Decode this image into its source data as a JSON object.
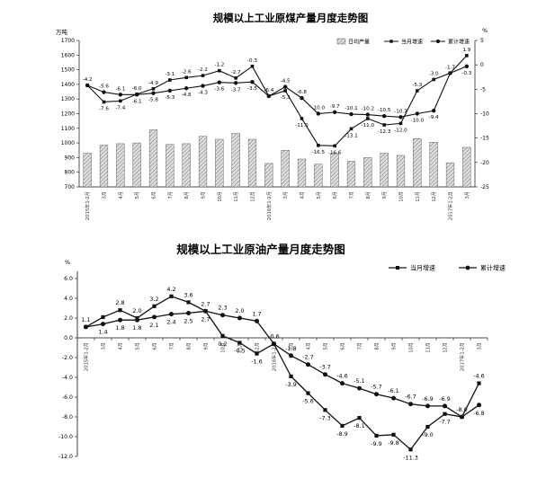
{
  "colors": {
    "ink": "#111111",
    "bar_fill": "#c8c8c8",
    "bar_stroke": "#444444",
    "grid": "#bdbdbd"
  },
  "chart_data": [
    {
      "type": "bar",
      "title": "规模以上工业原煤产量月度走势图",
      "ylabel_left": "万吨",
      "ylabel_right": "%",
      "ylim_left": [
        700,
        1700
      ],
      "yticks_left": [
        "700",
        "800",
        "900",
        "1000",
        "1100",
        "1200",
        "1300",
        "1400",
        "1500",
        "1600",
        "1700"
      ],
      "ylim_right": [
        -25,
        5
      ],
      "yticks_right": [
        "-25",
        "-20",
        "-15",
        "-10",
        "-5",
        "0",
        "5"
      ],
      "categories": [
        "2015年1-2月",
        "3月",
        "4月",
        "5月",
        "6月",
        "7月",
        "8月",
        "9月",
        "10月",
        "11月",
        "12月",
        "2016年1-2月",
        "3月",
        "4月",
        "5月",
        "6月",
        "7月",
        "8月",
        "9月",
        "10月",
        "11月",
        "12月",
        "2017年1-2月",
        "3月"
      ],
      "legend_position": "top-right",
      "series": [
        {
          "name": "日均产量",
          "kind": "bar",
          "values": [
            930,
            985,
            995,
            1000,
            1090,
            990,
            995,
            1045,
            1025,
            1065,
            1025,
            860,
            950,
            890,
            855,
            930,
            875,
            900,
            930,
            915,
            1030,
            1005,
            865,
            970
          ]
        },
        {
          "name": "当月增速",
          "kind": "line",
          "marker": "square",
          "values": [
            -4.2,
            -7.6,
            -7.4,
            -6.0,
            -4.9,
            -3.1,
            -2.6,
            -2.2,
            -1.2,
            -2.7,
            -0.3,
            -6.4,
            -5.3,
            -11.0,
            -16.5,
            -16.6,
            -13.1,
            -11.0,
            -12.3,
            -12.0,
            -5.3,
            -3.0,
            -1.7,
            1.9
          ],
          "labels": [
            "-4.2",
            "-7.6",
            "-7.4",
            "-6.0",
            "-4.9",
            "-3.1",
            "-2.6",
            "-2.2",
            "-1.2",
            "-2.7",
            "-0.3",
            "-6.4",
            "-5.3",
            "-11.0",
            "-16.5",
            "-16.6",
            "-13.1",
            "-11.0",
            "-12.3",
            "-12.0",
            "-5.3",
            "-3.0",
            "-1.7",
            "1.9"
          ]
        },
        {
          "name": "累计增速",
          "kind": "line",
          "marker": "circle",
          "values": [
            -4.2,
            -5.6,
            -6.1,
            -6.1,
            -5.8,
            -5.3,
            -4.8,
            -4.3,
            -3.6,
            -3.7,
            -3.5,
            -6.4,
            -4.5,
            -6.8,
            -10.0,
            -9.7,
            -10.1,
            -10.2,
            -10.5,
            -10.7,
            -10.0,
            -9.4,
            -1.7,
            -0.3
          ],
          "labels": [
            "",
            "-5.6",
            "-6.1",
            "-6.1",
            "-5.8",
            "-5.3",
            "-4.8",
            "-4.3",
            "-3.6",
            "-3.7",
            "-3.5",
            "",
            "-4.5",
            "-6.8",
            "-10.0",
            "-9.7",
            "-10.1",
            "-10.2",
            "-10.5",
            "-10.7",
            "-10.0",
            "-9.4",
            "",
            "-0.3"
          ]
        }
      ],
      "grid": false
    },
    {
      "type": "line",
      "title": "规模以上工业原油产量月度走势图",
      "ylabel": "%",
      "ylim": [
        -12,
        6
      ],
      "yticks": [
        "6.0",
        "4.0",
        "2.0",
        "0.0",
        "-2.0",
        "-4.0",
        "-6.0",
        "-8.0",
        "-10.0",
        "-12.0"
      ],
      "categories": [
        "2015年1-2月",
        "3月",
        "4月",
        "5月",
        "6月",
        "7月",
        "8月",
        "9月",
        "10月",
        "11月",
        "12月",
        "2016年1-2月",
        "3月",
        "4月",
        "5月",
        "6月",
        "7月",
        "8月",
        "9月",
        "10月",
        "11月",
        "12月",
        "2017年1-2月",
        "3月"
      ],
      "legend_position": "top-right",
      "series": [
        {
          "name": "当月增速",
          "marker": "square",
          "values": [
            1.1,
            2.1,
            2.8,
            2.0,
            3.2,
            4.2,
            3.6,
            2.7,
            0.2,
            -0.5,
            -1.6,
            -0.6,
            -3.9,
            -5.6,
            -7.3,
            -8.9,
            -8.1,
            -9.9,
            -9.8,
            -11.3,
            -9.0,
            -7.7,
            -8.0,
            -4.6
          ],
          "labels": [
            "1.1",
            "",
            "2.8",
            "2.0",
            "3.2",
            "4.2",
            "3.6",
            "2.7",
            "0.2",
            "-0.5",
            "-1.6",
            "-0.6",
            "-3.9",
            "-5.6",
            "-7.3",
            "-8.9",
            "-8.1",
            "-9.9",
            "-9.8",
            "-11.3",
            "-9.0",
            "-7.7",
            "-8.0",
            "-4.6"
          ]
        },
        {
          "name": "累计增速",
          "marker": "circle",
          "values": [
            1.1,
            1.4,
            1.8,
            1.8,
            2.1,
            2.4,
            2.5,
            2.7,
            2.3,
            2.0,
            1.7,
            -0.6,
            -1.8,
            -2.7,
            -3.7,
            -4.6,
            -5.1,
            -5.7,
            -6.1,
            -6.7,
            -6.9,
            -6.9,
            -8.0,
            -6.8
          ],
          "labels": [
            "",
            "1.4",
            "1.8",
            "1.8",
            "2.1",
            "2.4",
            "2.5",
            "2.7",
            "2.3",
            "2.0",
            "1.7",
            "",
            "-1.8",
            "-2.7",
            "-3.7",
            "-4.6",
            "-5.1",
            "-5.7",
            "-6.1",
            "-6.7",
            "-6.9",
            "-6.9",
            "",
            "-6.8"
          ]
        }
      ],
      "grid": false
    }
  ]
}
